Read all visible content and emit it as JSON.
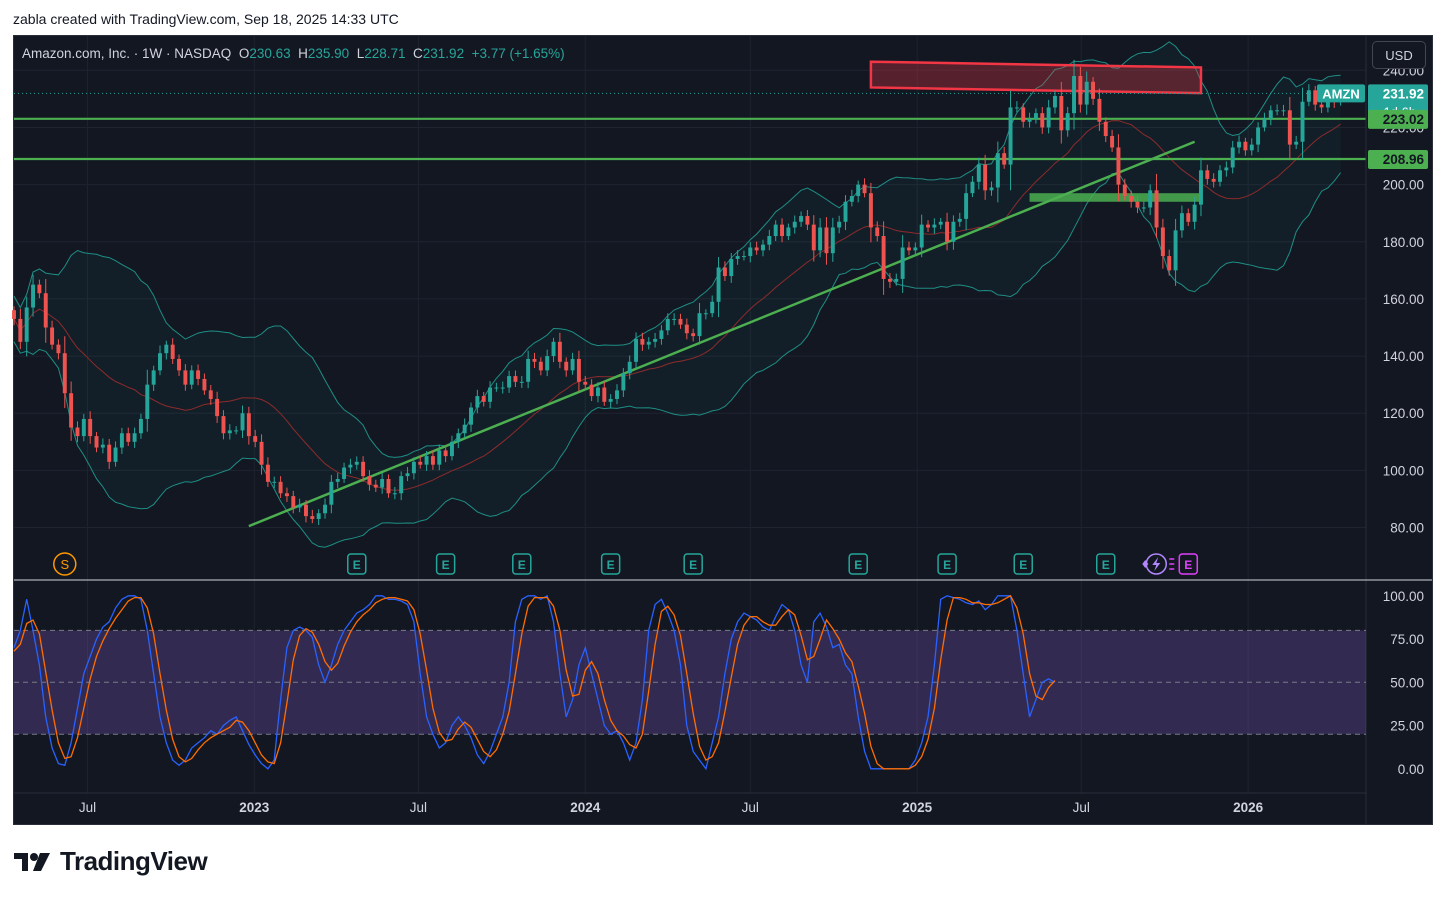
{
  "header": {
    "caption": "zabla created with TradingView.com, Sep 18, 2025 14:33 UTC"
  },
  "legend": {
    "symbol": "Amazon.com, Inc. · 1W · NASDAQ",
    "o_label": "O",
    "o_val": "230.63",
    "h_label": "H",
    "h_val": "235.90",
    "l_label": "L",
    "l_val": "228.71",
    "c_label": "C",
    "c_val": "231.92",
    "change": "+3.77 (+1.65%)"
  },
  "currency_button": "USD",
  "brand": {
    "name": "TradingView"
  },
  "colors": {
    "background": "#131722",
    "up": "#26a69a",
    "down": "#ef5350",
    "trend_line": "#4caf50",
    "resistance_zone": "#f23645",
    "band": "#1e8e85",
    "sma": "#8c2b2b",
    "stoch_k": "#2962ff",
    "stoch_d": "#ff6d00",
    "stoch_zone": "#7e57c2"
  },
  "chart_data": [
    {
      "type": "candlestick",
      "title": "",
      "interval": "1W",
      "y_axis": {
        "ticks": [
          "80.00",
          "100.00",
          "120.00",
          "140.00",
          "160.00",
          "180.00",
          "200.00",
          "220.00",
          "240.00"
        ],
        "ylim": [
          62,
          252
        ]
      },
      "x_axis": {
        "ticks": [
          "Jul",
          "2023",
          "Jul",
          "2024",
          "Jul",
          "2025",
          "Jul",
          "2026"
        ],
        "xlim": [
          "2022-04-11",
          "2026-05-11"
        ]
      },
      "price_labels": [
        {
          "text": "AMZN",
          "value": "231.92"
        },
        {
          "text": "1d 6h"
        },
        {
          "text": "223.02",
          "value": 223.02
        },
        {
          "text": "208.96",
          "value": 208.96
        }
      ],
      "horizontal_levels": [
        223.02,
        208.96
      ],
      "resistance_zone": {
        "from": "2024-11-11",
        "to": "2025-11-10",
        "top_start": 243,
        "top_end": 241,
        "bottom_start": 234,
        "bottom_end": 232
      },
      "support_zone": {
        "from": "2025-05-05",
        "to": "2025-11-10",
        "top": 197,
        "bottom": 194
      },
      "trend_line": {
        "start": [
          "2022-12-26",
          80.5
        ],
        "end": [
          "2025-11-03",
          215
        ]
      },
      "event_markers": [
        {
          "label": "S",
          "date": "2022-06-06",
          "kind": "split"
        },
        {
          "label": "E",
          "date": "2023-04-24",
          "kind": "earnings"
        },
        {
          "label": "E",
          "date": "2023-07-31",
          "kind": "earnings"
        },
        {
          "label": "E",
          "date": "2023-10-23",
          "kind": "earnings"
        },
        {
          "label": "E",
          "date": "2024-01-29",
          "kind": "earnings"
        },
        {
          "label": "E",
          "date": "2024-04-29",
          "kind": "earnings"
        },
        {
          "label": "E",
          "date": "2024-10-28",
          "kind": "earnings"
        },
        {
          "label": "E",
          "date": "2025-02-03",
          "kind": "earnings"
        },
        {
          "label": "E",
          "date": "2025-04-28",
          "kind": "earnings"
        },
        {
          "label": "E",
          "date": "2025-07-28",
          "kind": "earnings"
        },
        {
          "label": "E",
          "date": "2025-10-27",
          "kind": "earnings-upcoming"
        }
      ],
      "close_series": {
        "start": "2022-04-11",
        "step_days": 7,
        "values": [
          153,
          145,
          157,
          165,
          162,
          150,
          144,
          141,
          127,
          115,
          112,
          118,
          112,
          108,
          109,
          103,
          108,
          113,
          110,
          113,
          118,
          130,
          135,
          141,
          144,
          139,
          135,
          130,
          135,
          132,
          128,
          125,
          119,
          113,
          114,
          114,
          120,
          112,
          110,
          102,
          96,
          96,
          92,
          91,
          87,
          88,
          84,
          83,
          85,
          88,
          96,
          97,
          101,
          102,
          103,
          98,
          95,
          94,
          97,
          92,
          92,
          98,
          99,
          103,
          102,
          105,
          102,
          107,
          105,
          110,
          113,
          116,
          122,
          126,
          124,
          129,
          129,
          129,
          133,
          131,
          131,
          139,
          138,
          135,
          140,
          145,
          138,
          135,
          139,
          131,
          130,
          126,
          129,
          124,
          125,
          128,
          134,
          138,
          146,
          144,
          145,
          146,
          149,
          153,
          153,
          151,
          148,
          147,
          155,
          155,
          159,
          171,
          168,
          174,
          175,
          175,
          178,
          177,
          179,
          182,
          186,
          182,
          185,
          187,
          189,
          186,
          177,
          185,
          176,
          185,
          187,
          194,
          196,
          200,
          197,
          185,
          182,
          167,
          166,
          167,
          178,
          177,
          178,
          186,
          185,
          186,
          187,
          180,
          187,
          188,
          197,
          201,
          207,
          198,
          199,
          211,
          207,
          227,
          227,
          222,
          223,
          225,
          220,
          227,
          231,
          219,
          225,
          238,
          228,
          236,
          230,
          222,
          217,
          213,
          200,
          196,
          194,
          192,
          192,
          198,
          185,
          175,
          170,
          184,
          190,
          187,
          193,
          205,
          202,
          201,
          205,
          206,
          213,
          215,
          212,
          214,
          220,
          223,
          226,
          226,
          226,
          214,
          215,
          229,
          233,
          228,
          227,
          231,
          229,
          232
        ]
      }
    },
    {
      "type": "line",
      "title": "",
      "y_axis": {
        "ticks": [
          "0.00",
          "25.00",
          "50.00",
          "75.00",
          "100.00"
        ],
        "ylim": [
          -14,
          108
        ]
      },
      "bands": {
        "upper": 80,
        "middle": 50,
        "lower": 20
      },
      "series": [
        {
          "key": "k",
          "values": [
            70,
            80,
            98,
            80,
            60,
            30,
            12,
            3,
            2,
            15,
            35,
            55,
            65,
            75,
            82,
            85,
            93,
            98,
            100,
            100,
            98,
            80,
            55,
            30,
            15,
            5,
            2,
            5,
            12,
            15,
            18,
            22,
            20,
            25,
            28,
            30,
            22,
            14,
            8,
            3,
            0,
            5,
            40,
            70,
            80,
            82,
            80,
            76,
            60,
            50,
            60,
            72,
            80,
            85,
            90,
            92,
            95,
            100,
            100,
            98,
            98,
            97,
            95,
            85,
            55,
            30,
            20,
            12,
            15,
            25,
            30,
            25,
            18,
            8,
            3,
            10,
            20,
            30,
            50,
            85,
            98,
            100,
            100,
            98,
            100,
            85,
            55,
            30,
            40,
            60,
            70,
            55,
            40,
            25,
            20,
            22,
            15,
            5,
            15,
            40,
            80,
            95,
            98,
            90,
            80,
            60,
            25,
            10,
            5,
            0,
            15,
            30,
            55,
            75,
            85,
            90,
            88,
            86,
            82,
            80,
            88,
            95,
            92,
            80,
            60,
            50,
            85,
            90,
            82,
            70,
            72,
            60,
            55,
            30,
            10,
            0,
            0,
            0,
            0,
            0,
            0,
            0,
            5,
            15,
            30,
            60,
            98,
            100,
            99,
            98,
            96,
            95,
            97,
            92,
            95,
            100,
            100,
            100,
            80,
            55,
            30,
            40,
            50,
            52,
            50
          ]
        },
        {
          "key": "d",
          "values": [
            68,
            72,
            84,
            86,
            78,
            56,
            34,
            15,
            6,
            7,
            18,
            35,
            52,
            65,
            74,
            81,
            87,
            92,
            97,
            99,
            99,
            93,
            78,
            55,
            34,
            17,
            7,
            4,
            6,
            11,
            15,
            18,
            20,
            22,
            24,
            28,
            27,
            22,
            15,
            8,
            4,
            3,
            15,
            38,
            63,
            77,
            81,
            79,
            72,
            62,
            57,
            61,
            71,
            79,
            85,
            89,
            92,
            96,
            98,
            99,
            99,
            98,
            97,
            92,
            78,
            57,
            35,
            21,
            16,
            17,
            23,
            27,
            24,
            17,
            10,
            7,
            11,
            20,
            33,
            55,
            78,
            94,
            99,
            99,
            99,
            94,
            80,
            57,
            42,
            43,
            57,
            62,
            55,
            40,
            28,
            22,
            19,
            14,
            12,
            20,
            45,
            72,
            91,
            94,
            89,
            77,
            55,
            32,
            13,
            5,
            7,
            15,
            33,
            53,
            72,
            83,
            88,
            88,
            85,
            83,
            83,
            88,
            92,
            89,
            77,
            63,
            65,
            75,
            86,
            81,
            75,
            67,
            62,
            48,
            32,
            13,
            3,
            0,
            0,
            0,
            0,
            0,
            2,
            7,
            17,
            35,
            63,
            86,
            99,
            99,
            98,
            96,
            96,
            95,
            95,
            96,
            98,
            100,
            93,
            78,
            55,
            42,
            40,
            47,
            51
          ]
        }
      ]
    }
  ]
}
